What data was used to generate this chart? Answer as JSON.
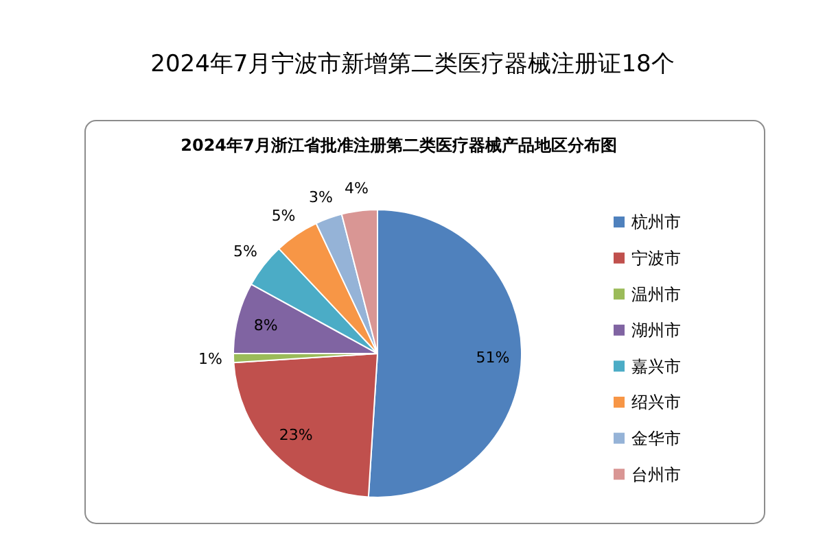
{
  "chart_data": {
    "type": "pie",
    "title": "2024年7月宁波市新增第二类医疗器械注册证18个",
    "subtitle": "2024年7月浙江省批准注册第二类医疗器械产品地区分布图",
    "categories": [
      "杭州市",
      "宁波市",
      "温州市",
      "湖州市",
      "嘉兴市",
      "绍兴市",
      "金华市",
      "台州市"
    ],
    "values": [
      51,
      23,
      1,
      8,
      5,
      5,
      3,
      4
    ],
    "colors": [
      "#4f81bd",
      "#c0504d",
      "#9bbb59",
      "#8064a2",
      "#4bacc6",
      "#f79646",
      "#95b3d7",
      "#d99694"
    ],
    "value_labels": [
      "51%",
      "23%",
      "1%",
      "8%",
      "5%",
      "5%",
      "3%",
      "4%"
    ],
    "legend": "right"
  }
}
